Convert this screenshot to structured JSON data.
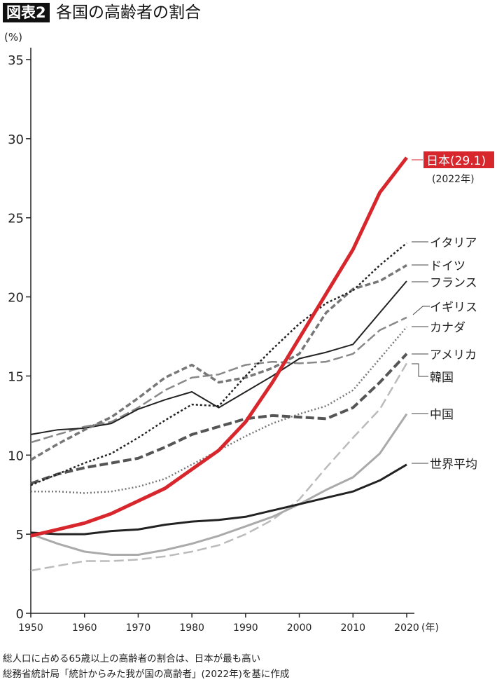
{
  "header": {
    "badge": "図表2",
    "title": "各国の高齢者の割合"
  },
  "footer": {
    "line1": "総人口に占める65歳以上の高齢者の割合は、日本が最も高い",
    "line2": "総務省統計局「統計からみた我が国の高齢者」(2022年)を基に作成"
  },
  "colors": {
    "accent": "#d7262c"
  },
  "chart_data": {
    "type": "line",
    "title": "各国の高齢者の割合",
    "ylabel": "(%)",
    "xlabel": "(年)",
    "ylim": [
      0,
      35
    ],
    "xlim": [
      1950,
      2020
    ],
    "yticks": [
      0,
      5,
      10,
      15,
      20,
      25,
      30,
      35
    ],
    "xticks": [
      1950,
      1960,
      1970,
      1980,
      1990,
      2000,
      2010,
      2020
    ],
    "grid": false,
    "x": [
      1950,
      1955,
      1960,
      1965,
      1970,
      1975,
      1980,
      1985,
      1990,
      1995,
      2000,
      2005,
      2010,
      2015,
      2020
    ],
    "japan_note": "(2022年)",
    "series": [
      {
        "name": "日本(29.1)",
        "values": [
          4.9,
          5.3,
          5.7,
          6.3,
          7.1,
          7.9,
          9.1,
          10.3,
          12.1,
          14.6,
          17.4,
          20.2,
          23.0,
          26.6,
          28.8
        ],
        "color": "#d7262c"
      },
      {
        "name": "イタリア",
        "values": [
          8.1,
          8.8,
          9.5,
          10.1,
          11.1,
          12.2,
          13.2,
          13.1,
          15.0,
          16.7,
          18.3,
          19.6,
          20.4,
          22.0,
          23.4
        ],
        "color": "#222222"
      },
      {
        "name": "ドイツ",
        "values": [
          9.7,
          10.7,
          11.6,
          12.4,
          13.6,
          14.9,
          15.7,
          14.6,
          14.9,
          15.5,
          16.4,
          19.0,
          20.5,
          21.0,
          22.0
        ],
        "color": "#777777"
      },
      {
        "name": "フランス",
        "values": [
          11.3,
          11.6,
          11.7,
          12.0,
          12.9,
          13.5,
          14.0,
          13.0,
          14.0,
          15.0,
          16.1,
          16.5,
          17.0,
          19.0,
          21.0
        ],
        "color": "#222222"
      },
      {
        "name": "イギリス",
        "values": [
          10.8,
          11.3,
          11.8,
          12.1,
          13.0,
          14.1,
          14.9,
          15.1,
          15.7,
          15.9,
          15.8,
          15.9,
          16.4,
          17.9,
          18.7
        ],
        "color": "#888888"
      },
      {
        "name": "カナダ",
        "values": [
          7.7,
          7.7,
          7.6,
          7.7,
          8.0,
          8.5,
          9.4,
          10.3,
          11.2,
          12.0,
          12.6,
          13.1,
          14.1,
          16.1,
          18.1
        ],
        "color": "#777777"
      },
      {
        "name": "アメリカ",
        "values": [
          8.2,
          8.8,
          9.2,
          9.5,
          9.8,
          10.5,
          11.3,
          11.8,
          12.3,
          12.5,
          12.4,
          12.3,
          13.0,
          14.6,
          16.4
        ],
        "color": "#555555"
      },
      {
        "name": "韓国",
        "values": [
          2.7,
          3.0,
          3.3,
          3.3,
          3.4,
          3.6,
          3.9,
          4.3,
          5.0,
          5.9,
          7.2,
          9.2,
          11.1,
          12.9,
          15.8
        ],
        "color": "#bbbbbb"
      },
      {
        "name": "中国",
        "values": [
          5.0,
          4.4,
          3.9,
          3.7,
          3.7,
          4.0,
          4.4,
          4.9,
          5.5,
          6.1,
          6.9,
          7.8,
          8.6,
          10.1,
          12.6
        ],
        "color": "#aaaaaa"
      },
      {
        "name": "世界平均",
        "values": [
          5.1,
          5.0,
          5.0,
          5.2,
          5.3,
          5.6,
          5.8,
          5.9,
          6.1,
          6.5,
          6.9,
          7.3,
          7.7,
          8.4,
          9.4
        ],
        "color": "#222222"
      }
    ]
  }
}
